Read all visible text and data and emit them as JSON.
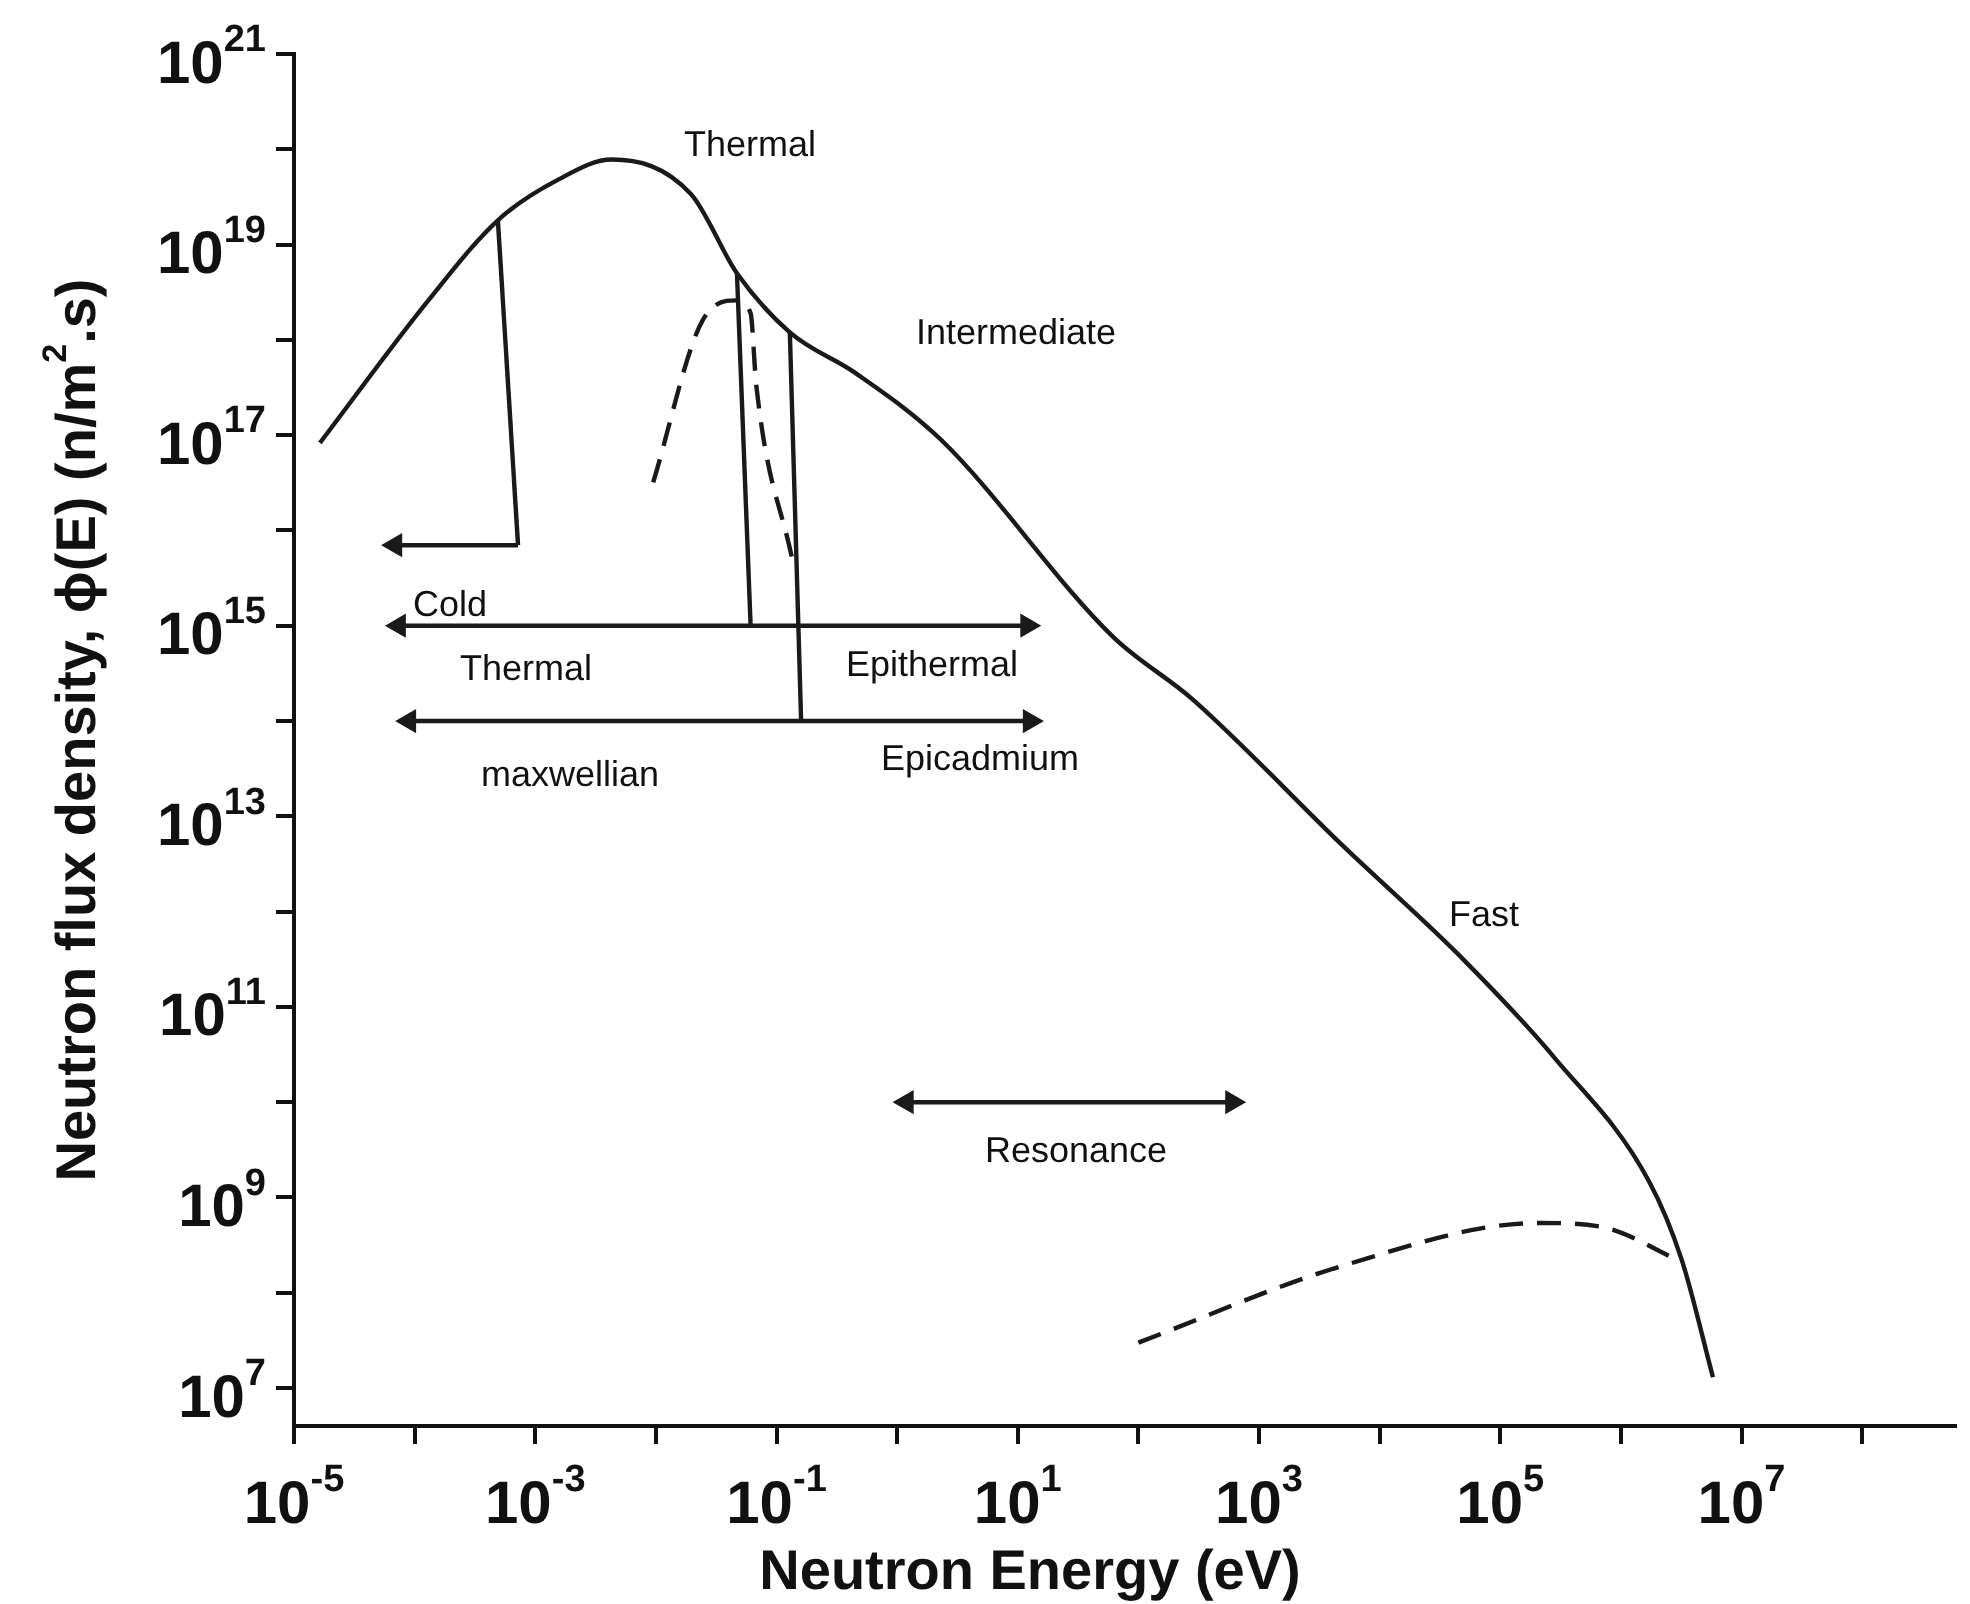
{
  "chart_data": {
    "type": "line",
    "xlabel": "Neutron Energy (eV)",
    "ylabel": "Neutron flux density, ϕ(E) (n/m$^{2}$.s)",
    "log": "xy",
    "xlim": [
      1e-05,
      600000000.0
    ],
    "ylim": [
      4000000.0,
      1e+21
    ],
    "marker": "none",
    "xticks": [
      {
        "value": 1e-05,
        "label": "10$^{-5}$"
      },
      {
        "value": 0.0001,
        "label": null
      },
      {
        "value": 0.001,
        "label": "10$^{-3}$"
      },
      {
        "value": 0.01,
        "label": null
      },
      {
        "value": 0.1,
        "label": "10$^{-1}$"
      },
      {
        "value": 1,
        "label": null
      },
      {
        "value": 10,
        "label": "10$^{1}$"
      },
      {
        "value": 100,
        "label": null
      },
      {
        "value": 1000,
        "label": "10$^{3}$"
      },
      {
        "value": 10000,
        "label": null
      },
      {
        "value": 100000,
        "label": "10$^{5}$"
      },
      {
        "value": 1000000,
        "label": null
      },
      {
        "value": 10000000,
        "label": "10$^{7}$"
      },
      {
        "value": 100000000,
        "label": null
      }
    ],
    "yticks": [
      {
        "value": 10000000.0,
        "label": "10$^{7}$"
      },
      {
        "value": 100000000.0,
        "label": null
      },
      {
        "value": 1000000000.0,
        "label": "10$^{9}$"
      },
      {
        "value": 10000000000.0,
        "label": null
      },
      {
        "value": 100000000000.0,
        "label": "10$^{11}$"
      },
      {
        "value": 1000000000000.0,
        "label": null
      },
      {
        "value": 10000000000000.0,
        "label": "10$^{13}$"
      },
      {
        "value": 100000000000000.0,
        "label": null
      },
      {
        "value": 1000000000000000.0,
        "label": "10$^{15}$"
      },
      {
        "value": 1e+16,
        "label": null
      },
      {
        "value": 1e+17,
        "label": "10$^{17}$"
      },
      {
        "value": 1e+18,
        "label": null
      },
      {
        "value": 1e+19,
        "label": "10$^{19}$"
      },
      {
        "value": 1e+20,
        "label": null
      },
      {
        "value": 1e+21,
        "label": "10$^{21}$"
      }
    ],
    "series": [
      {
        "color": "#1a1a1a",
        "line_style": "solid",
        "x": [
          1.64e-05,
          0.00013,
          0.00049,
          0.00155,
          0.0043,
          0.0195,
          0.047,
          0.129,
          0.45,
          2.3,
          62,
          280,
          4800,
          50000,
          290000,
          1700000,
          3200000,
          5800000
        ],
        "values": [
          8.3e+16,
          2.6e+18,
          1.8e+19,
          4.8e+19,
          7.8e+19,
          3.4e+19,
          5e+18,
          1.2e+18,
          4.5e+17,
          9e+16,
          760000000000000.0,
          170000000000000.0,
          5100000000000.0,
          310000000000.0,
          28000000000.0,
          1500000000.0,
          220000000.0,
          13000000.0
        ]
      },
      {
        "color": "#1a1a1a",
        "line_style": "dashed",
        "x": [
          0.0095,
          0.0244,
          0.047,
          0.061,
          0.068,
          0.135
        ],
        "values": [
          3.2e+16,
          1.6e+18,
          2.6e+18,
          1.9e+18,
          3.3e+17,
          5000000000000000.0
        ]
      },
      {
        "color": "#1a1a1a",
        "line_style": "dashed",
        "x": [
          100,
          4800,
          210000,
          700000,
          3000000
        ],
        "values": [
          30000000.0,
          190000000.0,
          540000000.0,
          490000000.0,
          220000000.0
        ]
      },
      {
        "color": "#1a1a1a",
        "line_style": "solid",
        "x": [
          0.00049,
          0.00072
        ],
        "values": [
          1.8e+19,
          7000000000000000.0
        ]
      },
      {
        "color": "#1a1a1a",
        "line_style": "solid",
        "marker": "triangle",
        "x": [
          0.00072,
          6.9e-05
        ],
        "values": [
          7000000000000000.0,
          7000000000000000.0
        ]
      },
      {
        "color": "#1a1a1a",
        "line_style": "solid",
        "x": [
          0.047,
          0.061
        ],
        "values": [
          5e+18,
          1000000000000000.0
        ]
      },
      {
        "color": "#1a1a1a",
        "line_style": "solid",
        "marker": "triangle",
        "x": [
          7.4e-05,
          12
        ],
        "values": [
          1000000000000000.0,
          1000000000000000.0
        ]
      },
      {
        "color": "#1a1a1a",
        "line_style": "solid",
        "x": [
          0.129,
          0.16
        ],
        "values": [
          1.2e+18,
          100000000000000.0
        ]
      },
      {
        "color": "#1a1a1a",
        "line_style": "solid",
        "marker": "triangle",
        "x": [
          9e-05,
          12.6
        ],
        "values": [
          100000000000000.0,
          100000000000000.0
        ]
      },
      {
        "color": "#1a1a1a",
        "line_style": "solid",
        "marker": "triangle",
        "x": [
          1.2,
          600
        ],
        "values": [
          10000000000.0,
          10000000000.0
        ]
      }
    ],
    "annotations": [
      "Thermal",
      "Intermediate",
      "Cold",
      "Thermal",
      "Epithermal",
      "maxwellian",
      "Epicadmium",
      "Resonance",
      "Fast"
    ]
  }
}
